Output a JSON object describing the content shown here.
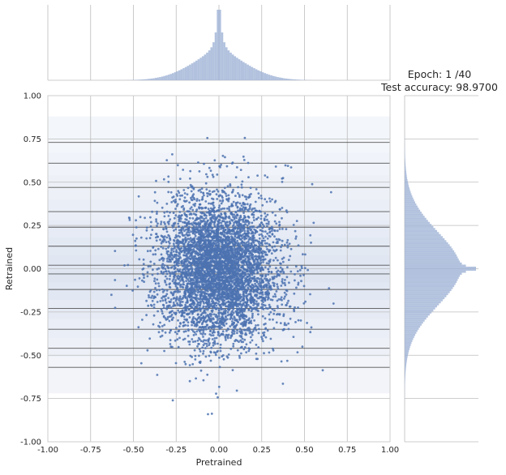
{
  "chart_data": {
    "type": "scatter",
    "title_lines": [
      "Epoch: 1 /40",
      "Test accuracy: 98.9700"
    ],
    "xlabel": "Pretrained",
    "ylabel": "Retrained",
    "xlim": [
      -1.0,
      1.0
    ],
    "ylim": [
      -1.0,
      1.0
    ],
    "x_ticks": [
      "-1.00",
      "-0.75",
      "-0.50",
      "-0.25",
      "0.00",
      "0.25",
      "0.50",
      "0.75",
      "1.00"
    ],
    "y_ticks": [
      "-1.00",
      "-0.75",
      "-0.50",
      "-0.25",
      "0.00",
      "0.25",
      "0.50",
      "0.75",
      "1.00"
    ],
    "grid": true,
    "point_color": "#4c72b0",
    "band_color": "#c8d3e8",
    "cluster_lines_y": [
      0.73,
      0.61,
      0.47,
      0.33,
      0.24,
      0.13,
      0.02,
      -0.03,
      -0.12,
      -0.23,
      -0.35,
      -0.46,
      -0.57
    ],
    "bands": [
      {
        "y0": 0.67,
        "y1": 0.88,
        "opacity": 0.35
      },
      {
        "y0": 0.54,
        "y1": 0.67,
        "opacity": 0.45
      },
      {
        "y0": 0.4,
        "y1": 0.54,
        "opacity": 0.55
      },
      {
        "y0": 0.28,
        "y1": 0.4,
        "opacity": 0.65
      },
      {
        "y0": 0.18,
        "y1": 0.28,
        "opacity": 0.75
      },
      {
        "y0": 0.08,
        "y1": 0.18,
        "opacity": 0.85
      },
      {
        "y0": -0.01,
        "y1": 0.08,
        "opacity": 0.95
      },
      {
        "y0": -0.08,
        "y1": -0.01,
        "opacity": 1.0
      },
      {
        "y0": -0.18,
        "y1": -0.08,
        "opacity": 0.9
      },
      {
        "y0": -0.29,
        "y1": -0.18,
        "opacity": 0.8
      },
      {
        "y0": -0.4,
        "y1": -0.29,
        "opacity": 0.65
      },
      {
        "y0": -0.51,
        "y1": -0.4,
        "opacity": 0.55
      },
      {
        "y0": -0.72,
        "y1": -0.51,
        "opacity": 0.4
      }
    ],
    "distribution": {
      "x": {
        "center": 0.0,
        "spread": 0.17,
        "peak_sharpness": 0.012
      },
      "y": {
        "center": 0.0,
        "spread": 0.21,
        "peak_sharpness": 0.012
      }
    }
  }
}
